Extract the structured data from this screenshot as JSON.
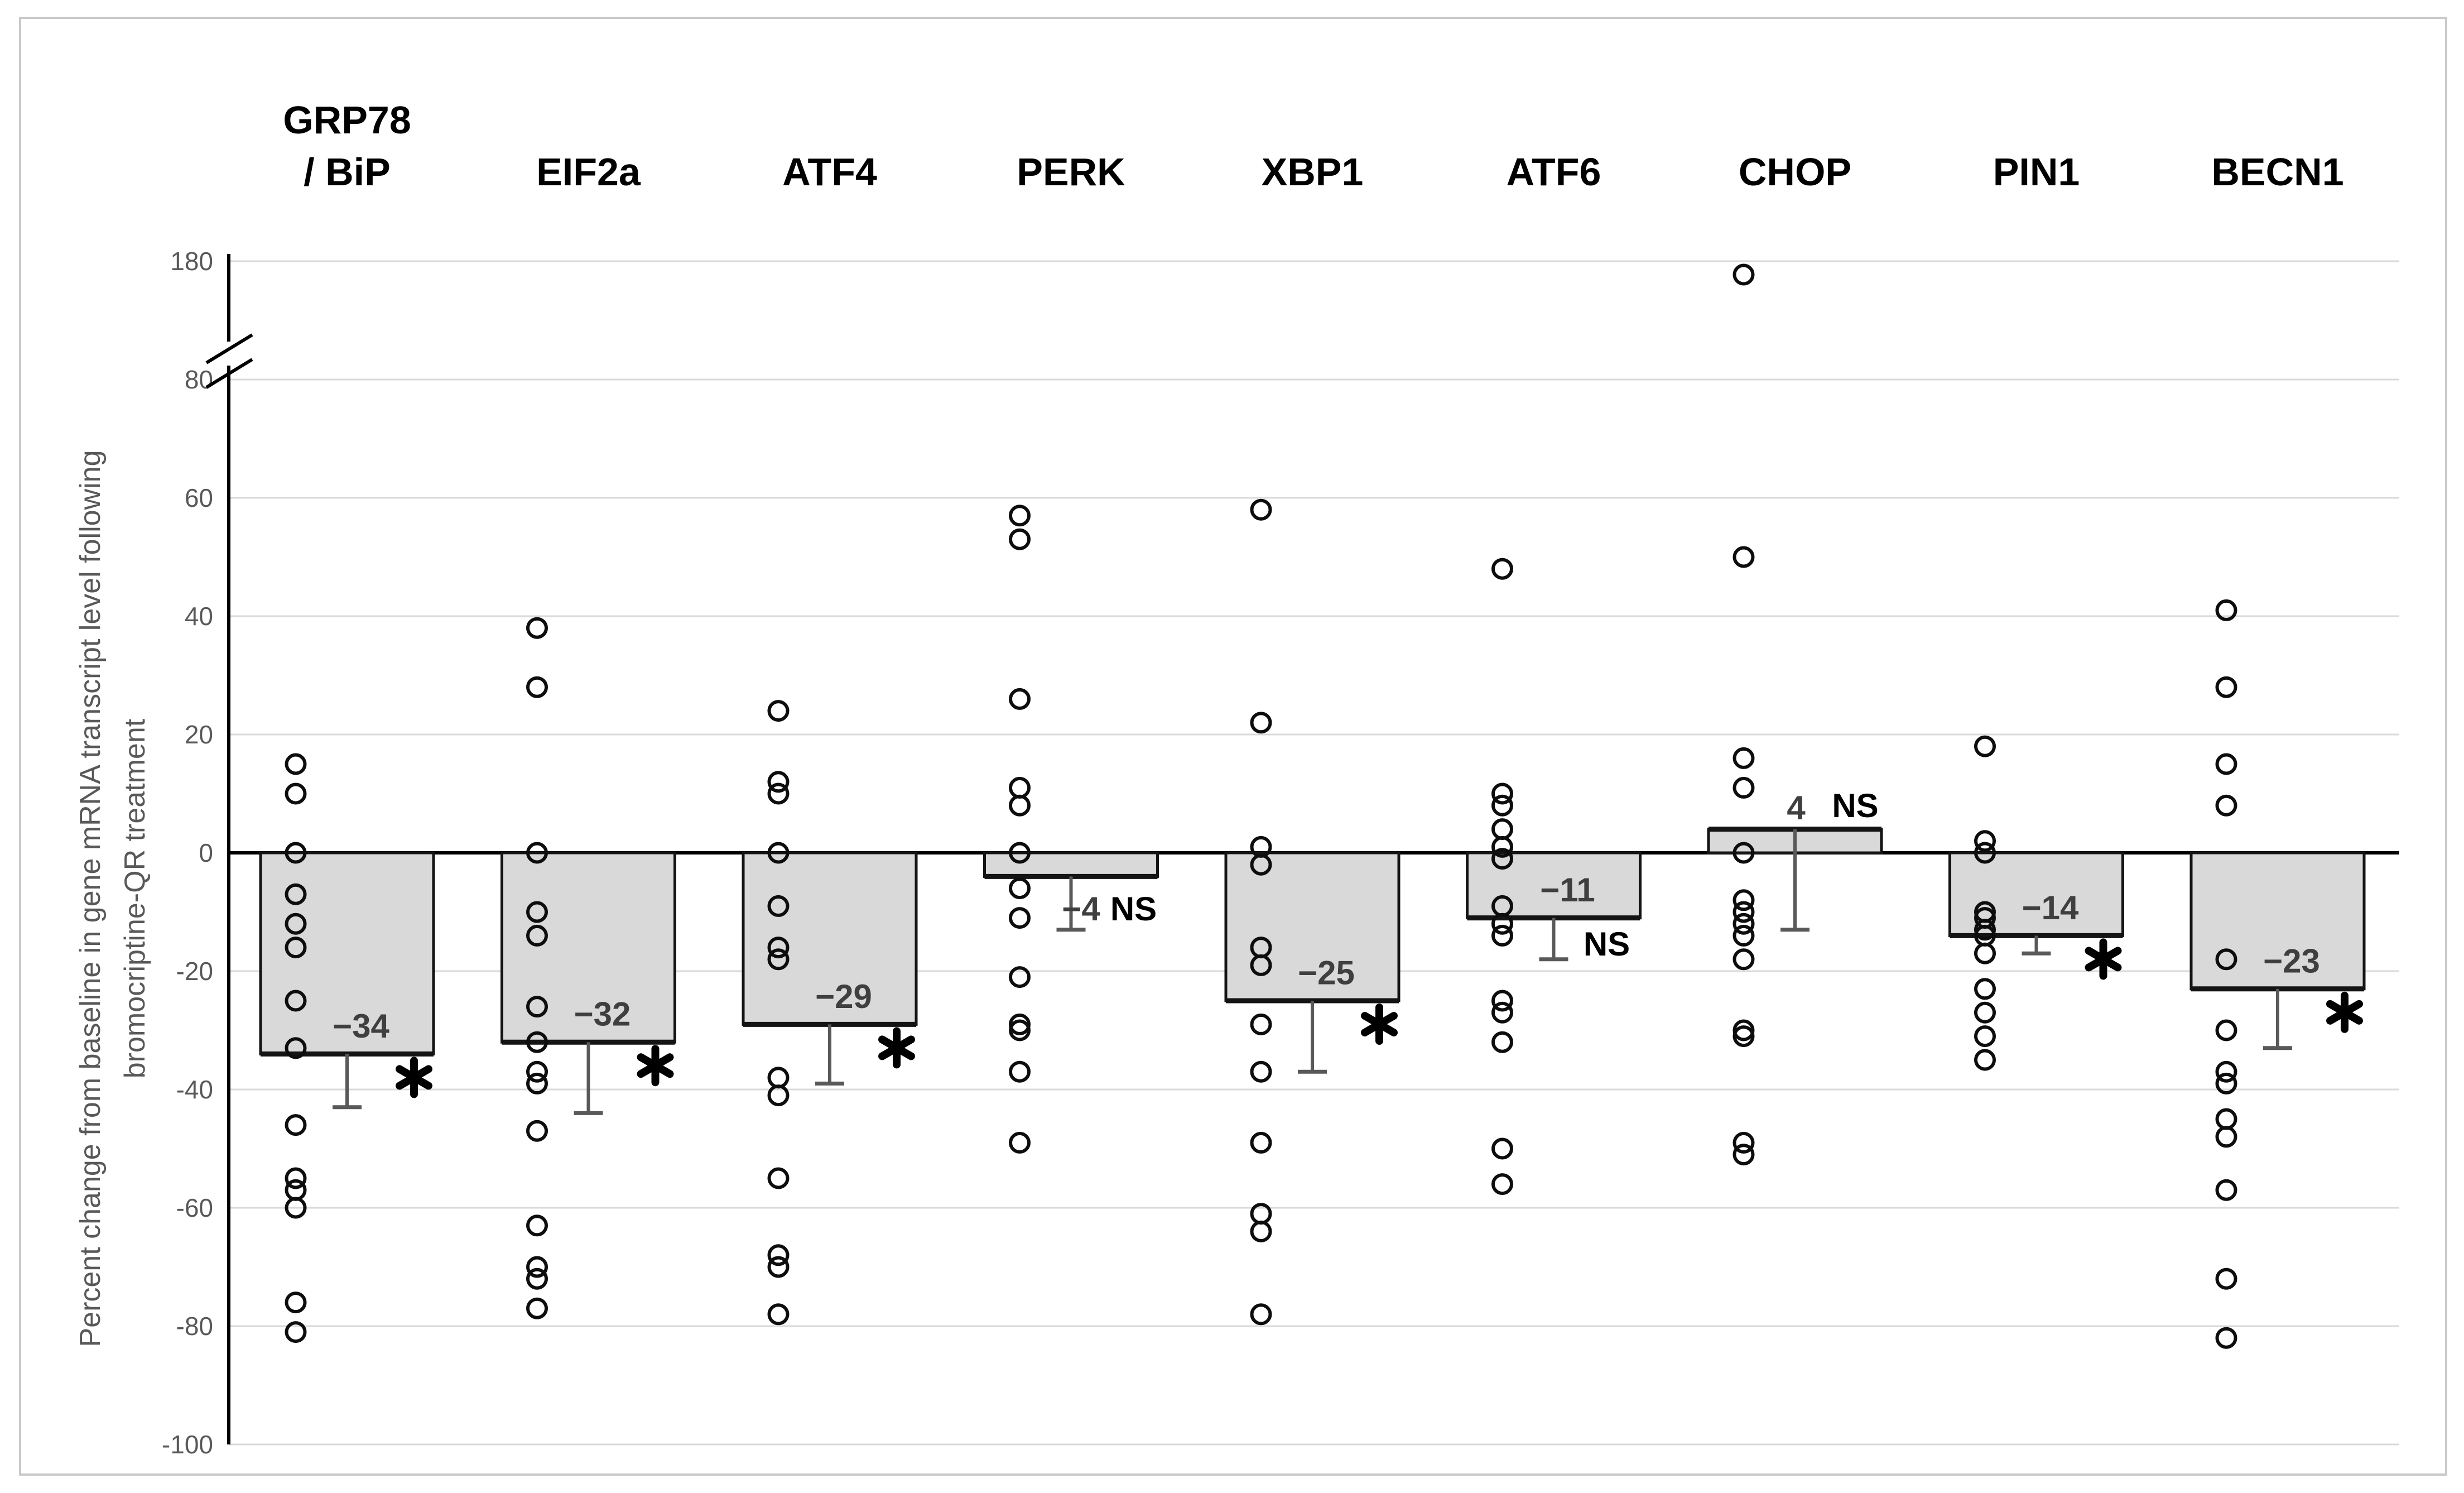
{
  "figure": {
    "border_color": "#c9c9c9",
    "background": "#ffffff"
  },
  "chart_data": {
    "type": "bar",
    "title": "",
    "ylabel_line1": "Percent change from baseline in gene mRNA  transcript level following",
    "ylabel_line2": "bromocriptine-QR treatment",
    "xlabel": "",
    "grid": true,
    "legend": "none",
    "axis_break": {
      "between_low": 80,
      "between_high": 180
    },
    "ylim_main": [
      -100,
      80
    ],
    "y_tick_values": [
      180,
      80,
      60,
      40,
      20,
      0,
      -20,
      -40,
      -60,
      -80,
      -100
    ],
    "y_tick_labels": [
      "180",
      "80",
      "60",
      "40",
      "20",
      "0",
      "-20",
      "-40",
      "-60",
      "-80",
      "-100"
    ],
    "bar_fill": "#d9d9d9",
    "bar_stroke": "#141414",
    "marker_stroke": "#0d0d0d",
    "whisker_color": "#595959",
    "value_label_color": "#3f3f3f",
    "sig_color": "#000000",
    "tick_label_color": "#595959",
    "grid_color": "#d9d9d9",
    "categories": [
      {
        "id": "grp78-bip",
        "label_lines": [
          "GRP78",
          "/ BiP"
        ],
        "bar": -34,
        "bar_label": "−34",
        "sig": "*",
        "whisker_to": -43,
        "points": [
          15,
          10,
          0,
          -7,
          -12,
          -16,
          -25,
          -33,
          -46,
          -55,
          -57,
          -60,
          -76,
          -81
        ]
      },
      {
        "id": "eif2a",
        "label_lines": [
          "EIF2a"
        ],
        "bar": -32,
        "bar_label": "−32",
        "sig": "*",
        "whisker_to": -44,
        "points": [
          38,
          28,
          0,
          -10,
          -14,
          -26,
          -32,
          -37,
          -39,
          -47,
          -63,
          -70,
          -72,
          -77
        ]
      },
      {
        "id": "atf4",
        "label_lines": [
          "ATF4"
        ],
        "bar": -29,
        "bar_label": "−29",
        "sig": "*",
        "whisker_to": -39,
        "points": [
          24,
          12,
          10,
          0,
          -9,
          -16,
          -18,
          -38,
          -41,
          -55,
          -68,
          -70,
          -78
        ]
      },
      {
        "id": "perk",
        "label_lines": [
          "PERK"
        ],
        "bar": -4,
        "bar_label": "−4",
        "sig": "NS",
        "whisker_to": -13,
        "points": [
          57,
          53,
          26,
          11,
          8,
          0,
          -6,
          -11,
          -21,
          -29,
          -30,
          -37,
          -49
        ]
      },
      {
        "id": "xbp1",
        "label_lines": [
          "XBP1"
        ],
        "bar": -25,
        "bar_label": "−25",
        "sig": "*",
        "whisker_to": -37,
        "points": [
          58,
          22,
          1,
          -2,
          -16,
          -19,
          -29,
          -37,
          -49,
          -61,
          -64,
          -78
        ]
      },
      {
        "id": "atf6",
        "label_lines": [
          "ATF6"
        ],
        "bar": -11,
        "bar_label": "−11",
        "sig": "NS",
        "whisker_to": -18,
        "points": [
          48,
          10,
          8,
          4,
          1,
          -1,
          -9,
          -12,
          -14,
          -25,
          -27,
          -32,
          -50,
          -56
        ]
      },
      {
        "id": "chop",
        "label_lines": [
          "CHOP"
        ],
        "bar": 4,
        "bar_label": "4",
        "sig": "NS",
        "whisker_to": -13,
        "points": [
          178,
          50,
          16,
          11,
          0,
          -8,
          -10,
          -12,
          -14,
          -18,
          -30,
          -31,
          -49,
          -51
        ]
      },
      {
        "id": "pin1",
        "label_lines": [
          "PIN1"
        ],
        "bar": -14,
        "bar_label": "−14",
        "sig": "*",
        "whisker_to": -17,
        "points": [
          18,
          2,
          0,
          -10,
          -11,
          -13,
          -14,
          -17,
          -23,
          -27,
          -31,
          -35
        ]
      },
      {
        "id": "becn1",
        "label_lines": [
          "BECN1"
        ],
        "bar": -23,
        "bar_label": "−23",
        "sig": "*",
        "whisker_to": -33,
        "points": [
          41,
          28,
          15,
          8,
          -18,
          -30,
          -37,
          -39,
          -45,
          -48,
          -57,
          -72,
          -82
        ]
      }
    ]
  }
}
